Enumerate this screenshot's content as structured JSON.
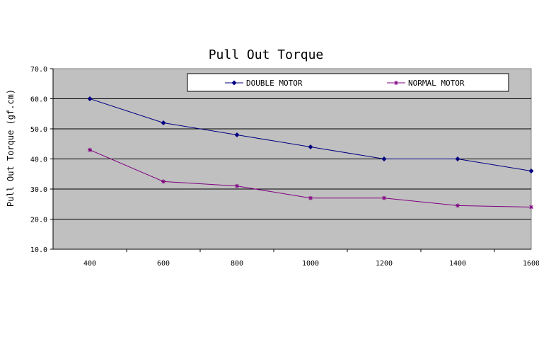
{
  "chart_data": {
    "type": "line",
    "title": "Pull Out Torque",
    "xlabel": "",
    "ylabel": "Pull Out Torque (gf.cm)",
    "categories": [
      "400",
      "600",
      "800",
      "1000",
      "1200",
      "1400",
      "1600"
    ],
    "x_ticks": [
      "400",
      "600",
      "800",
      "1000",
      "1200",
      "1400",
      "1600"
    ],
    "y_ticks": [
      "10.0",
      "20.0",
      "30.0",
      "40.0",
      "50.0",
      "60.0",
      "70.0"
    ],
    "ylim": [
      10,
      70
    ],
    "grid": "horizontal",
    "legend": "top",
    "series": [
      {
        "name": "DOUBLE MOTOR",
        "color": "#000080",
        "marker": "diamond",
        "values": [
          60,
          52,
          48,
          44,
          40,
          40,
          36
        ]
      },
      {
        "name": "NORMAL MOTOR",
        "color": "#800080",
        "marker": "star",
        "values": [
          43,
          32.5,
          31,
          27,
          27,
          24.5,
          24
        ]
      }
    ]
  }
}
